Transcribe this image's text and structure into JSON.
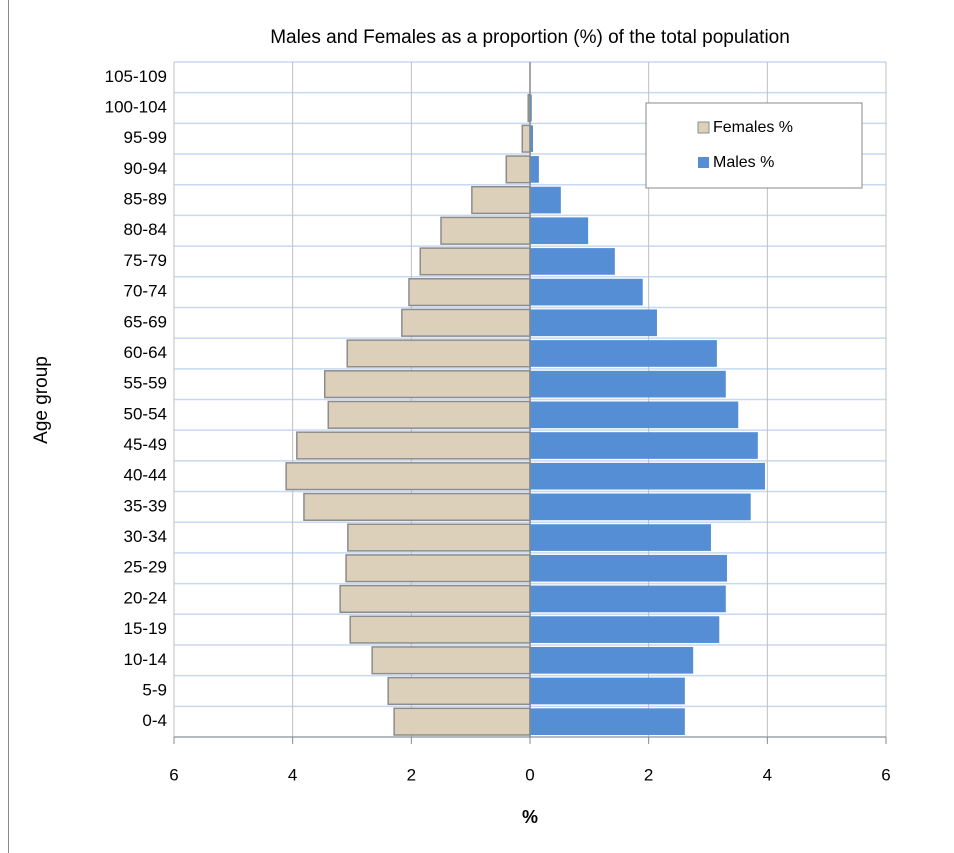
{
  "chart_data": {
    "type": "bar",
    "orientation": "horizontal",
    "stacking": "diverging",
    "title": "Males and Females as a proportion (%) of the total population",
    "x_label": "%",
    "y_label": "Age group",
    "categories": [
      "0-4",
      "5-9",
      "10-14",
      "15-19",
      "20-24",
      "25-29",
      "30-34",
      "35-39",
      "40-44",
      "45-49",
      "50-54",
      "55-59",
      "60-64",
      "65-69",
      "70-74",
      "75-79",
      "80-84",
      "85-89",
      "90-94",
      "95-99",
      "100-104",
      "105-109"
    ],
    "series": [
      {
        "name": "Females %",
        "color": "#ddd0bb",
        "values": [
          -2.29,
          -2.39,
          -2.66,
          -3.03,
          -3.2,
          -3.1,
          -3.07,
          -3.81,
          -4.11,
          -3.93,
          -3.4,
          -3.46,
          -3.08,
          -2.16,
          -2.04,
          -1.85,
          -1.5,
          -0.98,
          -0.4,
          -0.13,
          -0.03,
          0
        ]
      },
      {
        "name": "Males %",
        "color": "#558ed5",
        "values": [
          2.61,
          2.61,
          2.75,
          3.19,
          3.3,
          3.32,
          3.05,
          3.72,
          3.96,
          3.84,
          3.51,
          3.3,
          3.15,
          2.14,
          1.9,
          1.43,
          0.98,
          0.52,
          0.15,
          0.05,
          0.03,
          0
        ]
      }
    ],
    "xlim": [
      -6,
      6
    ],
    "xticks": [
      {
        "value": -6,
        "label": "6"
      },
      {
        "value": -4,
        "label": "4"
      },
      {
        "value": -2,
        "label": "2"
      },
      0,
      2,
      4,
      6
    ],
    "grid": true,
    "legend": "top-right"
  }
}
